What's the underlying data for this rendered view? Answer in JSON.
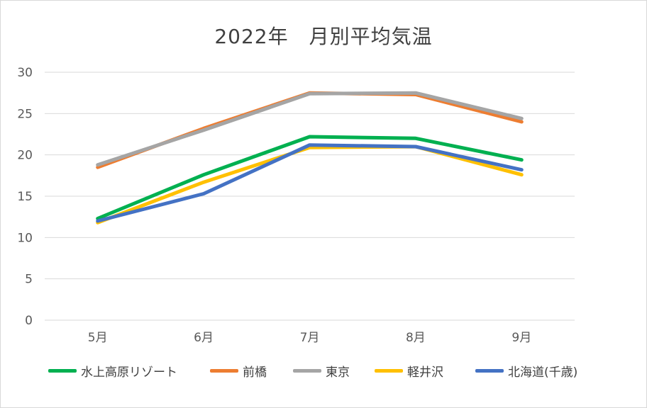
{
  "chart_data": {
    "type": "line",
    "title": "2022年　月別平均気温",
    "xlabel": "",
    "ylabel": "",
    "categories": [
      "5月",
      "6月",
      "7月",
      "8月",
      "9月"
    ],
    "ylim": [
      0,
      30
    ],
    "yticks": [
      "0",
      "5",
      "10",
      "15",
      "20",
      "25",
      "30"
    ],
    "grid": true,
    "legend": "bottom",
    "series": [
      {
        "name": "水上高原リゾート",
        "color": "#00b050",
        "values": [
          12.3,
          17.6,
          22.2,
          22.0,
          19.4
        ]
      },
      {
        "name": "前橋",
        "color": "#ed7d31",
        "values": [
          18.5,
          23.2,
          27.5,
          27.3,
          24.0
        ]
      },
      {
        "name": "東京",
        "color": "#a5a5a5",
        "values": [
          18.8,
          23.0,
          27.4,
          27.5,
          24.4
        ]
      },
      {
        "name": "軽井沢",
        "color": "#ffc000",
        "values": [
          11.8,
          16.7,
          20.9,
          21.0,
          17.6
        ]
      },
      {
        "name": "北海道(千歳)",
        "color": "#4472c4",
        "values": [
          12.0,
          15.3,
          21.2,
          21.0,
          18.2
        ]
      }
    ]
  }
}
